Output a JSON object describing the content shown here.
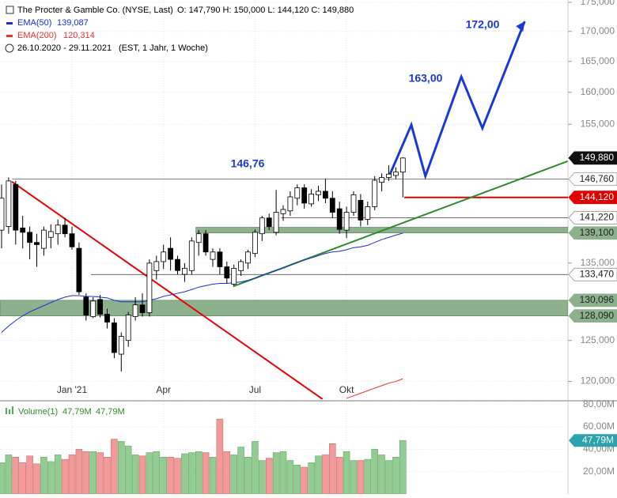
{
  "header": {
    "title": "The Procter & Gamble Co. (NYSE, Last)",
    "ohlc": "O: 147,790   H: 150,000   L: 144,120   C: 149,880",
    "range": "26.10.2020 - 29.11.2021",
    "range_note": "(EST, 1 Jahr, 1 Woche)"
  },
  "chart_data": [
    {
      "type": "candlestick",
      "categories": [
        null,
        null,
        null,
        null,
        null,
        null,
        null,
        null,
        null,
        null,
        "Jan '21",
        null,
        null,
        null,
        null,
        null,
        null,
        null,
        null,
        null,
        null,
        null,
        null,
        "Apr",
        null,
        null,
        null,
        null,
        null,
        null,
        null,
        null,
        null,
        null,
        null,
        null,
        "Jul",
        null,
        null,
        null,
        null,
        null,
        null,
        null,
        null,
        null,
        null,
        null,
        null,
        "Okt",
        null,
        null,
        null,
        null,
        null,
        null,
        null,
        null
      ],
      "open": [
        139.5,
        140,
        146,
        139.8,
        139.2,
        137.8,
        137,
        138.5,
        139,
        140.2,
        139,
        137,
        130.5,
        128,
        130.2,
        128.3,
        127.2,
        123.3,
        125,
        128,
        129.5,
        128.5,
        134,
        135.2,
        137,
        135.5,
        133.5,
        134,
        137.8,
        139,
        135.5,
        136.5,
        134.5,
        132.2,
        134,
        135,
        136.3,
        139,
        141.2,
        139.2,
        141.8,
        142.2,
        144,
        145.5,
        143.2,
        144.5,
        145,
        144,
        142.5,
        139.5,
        142,
        143.7,
        141,
        142.8,
        146.3,
        147,
        147.3,
        147.79
      ],
      "high": [
        146,
        147,
        146.5,
        141.5,
        140,
        139,
        140,
        140.3,
        141,
        141.2,
        140,
        137.8,
        131,
        130.5,
        130.8,
        129,
        127.8,
        126,
        128.6,
        130.5,
        131,
        135.5,
        136,
        137.5,
        138.5,
        136,
        135,
        138.5,
        139.5,
        139.5,
        137,
        137,
        135.2,
        134.8,
        135.5,
        136.8,
        139.6,
        141.5,
        141.8,
        145.2,
        143,
        145,
        146,
        146,
        145.3,
        145.8,
        146.8,
        145,
        143.5,
        142.8,
        145,
        144.6,
        143.5,
        147.2,
        147.6,
        148.8,
        148.5,
        150
      ],
      "low": [
        137,
        139,
        137.5,
        137,
        135.5,
        134.5,
        136,
        137,
        137.5,
        138.5,
        136.8,
        130.8,
        127.5,
        127.8,
        127.9,
        126.5,
        122.8,
        121.2,
        124.2,
        127.5,
        128,
        128,
        132.8,
        134.2,
        134,
        133.5,
        132.5,
        133.5,
        136,
        136,
        134.5,
        133.5,
        132.3,
        132,
        133.3,
        134.2,
        135.8,
        138,
        139.5,
        138.8,
        140.8,
        141.5,
        143,
        142.5,
        142.8,
        143.6,
        143.3,
        141.2,
        139,
        138.4,
        141.5,
        140,
        140.2,
        142.3,
        145,
        146.5,
        146.8,
        144.12
      ],
      "close": [
        144,
        146.5,
        139.5,
        139.2,
        137.8,
        137.5,
        139.5,
        139.3,
        140.2,
        139,
        137.2,
        131.2,
        128.2,
        130,
        128.3,
        127.3,
        123.5,
        125.5,
        128.2,
        129.5,
        128.5,
        135,
        135.2,
        136.5,
        135.5,
        134,
        134.3,
        138,
        139,
        136.5,
        136.5,
        134.5,
        133,
        134.3,
        135.2,
        136.5,
        139.2,
        141.2,
        140,
        142,
        142.4,
        144.2,
        145.5,
        143.3,
        144.6,
        145,
        144,
        142,
        139.6,
        142,
        144.5,
        140.9,
        142.8,
        146.6,
        147,
        147.5,
        147.8,
        149.88
      ],
      "last_label": "149,880",
      "up_color": "#ffffff",
      "down_color": "#000000",
      "xlim": [
        -0.225,
        80.45
      ],
      "ylim": [
        117.9,
        175.4
      ],
      "log": true,
      "yticks": [
        {
          "value": 175,
          "label": "175,000"
        },
        {
          "value": 170,
          "label": "170,000"
        },
        {
          "value": 165,
          "label": "165,000"
        },
        {
          "value": 160,
          "label": "160,000"
        },
        {
          "value": 155,
          "label": "155,000"
        },
        {
          "value": 135,
          "label": "135,000"
        },
        {
          "value": 125,
          "label": "125,000"
        },
        {
          "value": 120,
          "label": "120,000"
        }
      ],
      "grid": true,
      "series": [
        {
          "name": "EMA(50)",
          "color": "#1a2fd6",
          "value_label": "139,087",
          "values": [
            126,
            126.8,
            127.5,
            128.1,
            128.6,
            129,
            129.4,
            129.8,
            130.2,
            130.5,
            130.7,
            130.7,
            130.6,
            130.6,
            130.5,
            130.4,
            130.1,
            129.9,
            129.9,
            129.9,
            129.9,
            130.1,
            130.3,
            130.6,
            130.8,
            131,
            131.2,
            131.5,
            131.8,
            132,
            132.2,
            132.3,
            132.3,
            132.4,
            132.5,
            132.7,
            133,
            133.4,
            133.7,
            134,
            134.3,
            134.7,
            135.1,
            135.4,
            135.7,
            136,
            136.3,
            136.5,
            136.6,
            136.8,
            137.1,
            137.2,
            137.4,
            137.8,
            138.2,
            138.5,
            138.8,
            139.087
          ]
        },
        {
          "name": "EMA(200)",
          "color": "#e8302a",
          "value_label": "120,314",
          "values": [
            null,
            null,
            null,
            null,
            null,
            null,
            null,
            null,
            null,
            null,
            null,
            null,
            null,
            null,
            null,
            null,
            null,
            null,
            null,
            null,
            null,
            null,
            null,
            null,
            null,
            null,
            null,
            null,
            null,
            null,
            null,
            null,
            null,
            null,
            null,
            null,
            null,
            null,
            null,
            null,
            null,
            null,
            null,
            null,
            null,
            null,
            null,
            null,
            null,
            118,
            118.3,
            118.6,
            118.9,
            119.2,
            119.5,
            119.8,
            120,
            120.314
          ]
        }
      ],
      "levels": [
        {
          "value": 146.76,
          "label": "146,760",
          "start": 1.5,
          "color": "#555555"
        },
        {
          "value": 144.12,
          "label": "144,120",
          "start": 57.2,
          "color": "#e00000"
        },
        {
          "value": 141.22,
          "label": "141,220",
          "start": 39.7,
          "color": "#555555"
        },
        {
          "value": 133.47,
          "label": "133,470",
          "start": 12.7,
          "color": "#555555"
        }
      ],
      "zones": [
        {
          "from": 139.1,
          "to": 139.9,
          "start": 27.6,
          "label": "139,100",
          "color": "#8db08d"
        },
        {
          "from": 128.09,
          "to": 130.096,
          "start": -0.225,
          "labels": [
            "130,096",
            "128,090"
          ],
          "color": "#8db08d"
        }
      ],
      "trendlines": [
        {
          "color": "#e8000a",
          "x": [
            1.46,
            45.6
          ],
          "values": [
            146.4,
            117.9
          ]
        },
        {
          "color": "#2e8b2e",
          "x": [
            32.9,
            80.4
          ],
          "values": [
            131.9,
            149.4
          ]
        }
      ],
      "projection": {
        "color": "#1a3ad8",
        "x": [
          55.1,
          58.2,
          60.2,
          65.3,
          68.3,
          74.3
        ],
        "values": [
          147.3,
          154.9,
          147.2,
          162.5,
          154.4,
          171.7
        ]
      },
      "annotations": [
        "146,76",
        "163,00",
        "172,00"
      ],
      "annotation_color": "#1a3ad8"
    },
    {
      "type": "bar",
      "name": "Volume(1)",
      "legend_values": [
        "47,79M",
        "47,79M"
      ],
      "last_label": "47,79M",
      "values": [
        28,
        35,
        33,
        28,
        34,
        27,
        33,
        29,
        35,
        31,
        35,
        40,
        38,
        38,
        37,
        33,
        49,
        47,
        43,
        35,
        34,
        37,
        38,
        33,
        33,
        32,
        36,
        37,
        38,
        37,
        33,
        67,
        38,
        35,
        42,
        33,
        47,
        30,
        32,
        37,
        38,
        30,
        26,
        24,
        28,
        34,
        35,
        45,
        33,
        38,
        30,
        30,
        31,
        40,
        35,
        30,
        33,
        47.79
      ],
      "up_color": "#93cc93",
      "down_color": "#f29a9a",
      "marker_color": "#2aa3ad",
      "ylim": [
        0,
        82.6
      ],
      "yticks": [
        {
          "value": 80,
          "label": "80,00M"
        },
        {
          "value": 60,
          "label": "60,00M"
        },
        {
          "value": 40,
          "label": "40,00M"
        },
        {
          "value": 20,
          "label": "20,00M"
        }
      ]
    }
  ]
}
